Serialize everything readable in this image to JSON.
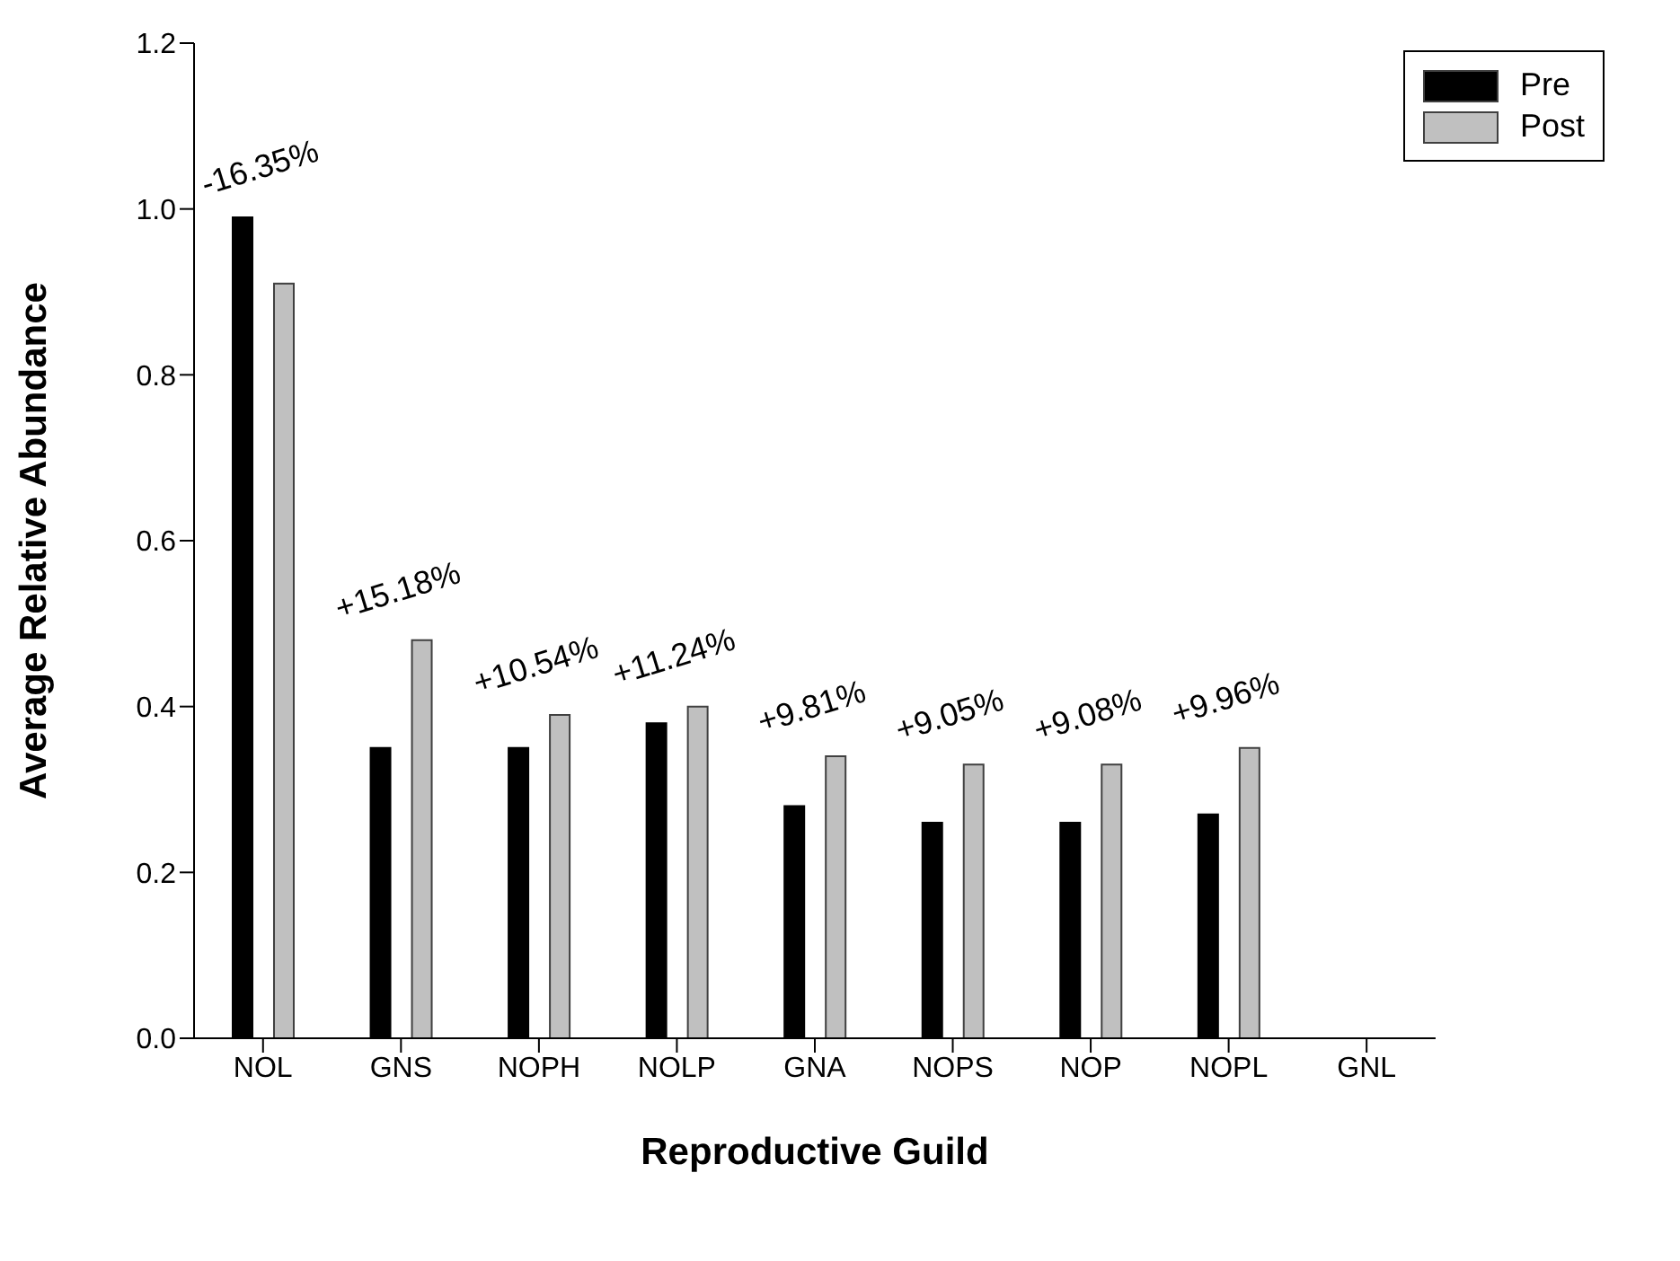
{
  "chart_data": {
    "type": "bar",
    "xlabel": "Reproductive Guild",
    "ylabel": "Average Relative Abundance",
    "categories": [
      "NOL",
      "GNS",
      "NOPH",
      "NOLP",
      "GNA",
      "NOPS",
      "NOP",
      "NOPL",
      "GNL"
    ],
    "series": [
      {
        "name": "Pre",
        "color": "#000000",
        "values": [
          0.99,
          0.35,
          0.35,
          0.38,
          0.28,
          0.26,
          0.26,
          0.27,
          null
        ]
      },
      {
        "name": "Post",
        "color": "#c0c0c0",
        "values": [
          0.91,
          0.48,
          0.39,
          0.4,
          0.34,
          0.33,
          0.33,
          0.35,
          null
        ]
      }
    ],
    "ylim": [
      0,
      1.2
    ],
    "yticks": [
      {
        "value": 0,
        "label": "0.0"
      },
      {
        "value": 0.2,
        "label": "0.2"
      },
      {
        "value": 0.4,
        "label": "0.4"
      },
      {
        "value": 0.6,
        "label": "0.6"
      },
      {
        "value": 0.8,
        "label": "0.8"
      },
      {
        "value": 1,
        "label": "1.0"
      },
      {
        "value": 1.2,
        "label": "1.2"
      }
    ],
    "grid": false,
    "legend": "top right",
    "annotations": [
      "-16.35%",
      "+15.18%",
      "+10.54%",
      "+11.24%",
      "+9.81%",
      "+9.05%",
      "+9.08%",
      "+9.96%"
    ]
  }
}
